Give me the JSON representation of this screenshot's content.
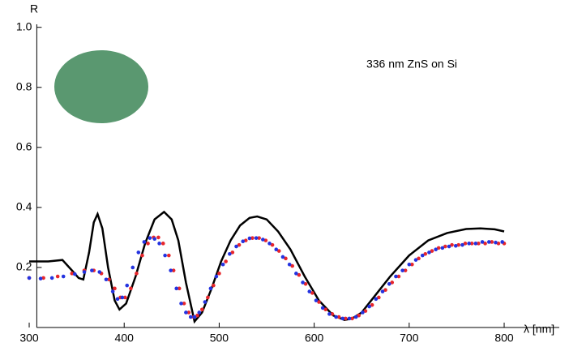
{
  "chart_data": {
    "type": "scatter",
    "y_label": "R",
    "x_label": "λ [nm]",
    "annotation": "336 nm  ZnS  on Si",
    "xlim": [
      308,
      858
    ],
    "ylim": [
      0,
      1.01
    ],
    "xticks": [
      300,
      400,
      500,
      600,
      700,
      800
    ],
    "yticks": [
      0.2,
      0.4,
      0.6,
      0.8,
      {
        "value": 1,
        "label": "1.0"
      }
    ],
    "series": [
      {
        "mode": "line",
        "color": "#000000",
        "x": [
          300,
          320,
          335,
          345,
          352,
          357,
          363,
          368,
          372,
          377,
          383,
          390,
          395,
          402,
          412,
          422,
          432,
          442,
          450,
          457,
          465,
          474,
          482,
          492,
          502,
          512,
          522,
          532,
          540,
          550,
          562,
          575,
          590,
          605,
          620,
          632,
          640,
          650,
          665,
          680,
          700,
          720,
          740,
          760,
          775,
          790,
          800
        ],
        "values": [
          0.22,
          0.22,
          0.225,
          0.19,
          0.165,
          0.16,
          0.25,
          0.35,
          0.378,
          0.33,
          0.2,
          0.09,
          0.06,
          0.08,
          0.17,
          0.28,
          0.36,
          0.385,
          0.36,
          0.29,
          0.15,
          0.02,
          0.05,
          0.13,
          0.22,
          0.29,
          0.34,
          0.365,
          0.37,
          0.36,
          0.32,
          0.26,
          0.17,
          0.09,
          0.04,
          0.025,
          0.03,
          0.05,
          0.11,
          0.17,
          0.24,
          0.29,
          0.315,
          0.328,
          0.33,
          0.327,
          0.32
        ]
      },
      {
        "mode": "points",
        "color": "#e8262b",
        "x": [
          300,
          315,
          330,
          345,
          358,
          368,
          376,
          384,
          390,
          396,
          401,
          407,
          413,
          419,
          425,
          431,
          436,
          441,
          447,
          452,
          458,
          463,
          468,
          473,
          477,
          482,
          488,
          494,
          500,
          507,
          514,
          521,
          528,
          535,
          542,
          549,
          556,
          563,
          570,
          577,
          584,
          591,
          598,
          605,
          612,
          619,
          626,
          633,
          640,
          647,
          654,
          661,
          668,
          675,
          682,
          689,
          696,
          703,
          710,
          717,
          724,
          731,
          738,
          745,
          752,
          759,
          766,
          773,
          780,
          787,
          794,
          800
        ],
        "values": [
          0.165,
          0.165,
          0.17,
          0.18,
          0.19,
          0.19,
          0.18,
          0.16,
          0.13,
          0.1,
          0.1,
          0.13,
          0.18,
          0.24,
          0.28,
          0.3,
          0.3,
          0.28,
          0.24,
          0.19,
          0.13,
          0.08,
          0.05,
          0.035,
          0.04,
          0.06,
          0.1,
          0.14,
          0.18,
          0.22,
          0.25,
          0.275,
          0.29,
          0.298,
          0.298,
          0.29,
          0.275,
          0.255,
          0.23,
          0.205,
          0.175,
          0.145,
          0.115,
          0.085,
          0.06,
          0.045,
          0.035,
          0.03,
          0.03,
          0.04,
          0.055,
          0.075,
          0.1,
          0.125,
          0.15,
          0.17,
          0.19,
          0.21,
          0.23,
          0.245,
          0.255,
          0.265,
          0.27,
          0.275,
          0.275,
          0.28,
          0.28,
          0.28,
          0.28,
          0.285,
          0.28,
          0.28
        ]
      },
      {
        "mode": "points",
        "color": "#2433e0",
        "x": [
          300,
          312,
          324,
          336,
          348,
          358,
          366,
          374,
          381,
          388,
          393,
          398,
          403,
          409,
          415,
          421,
          427,
          432,
          437,
          443,
          449,
          455,
          460,
          465,
          470,
          474,
          479,
          485,
          491,
          497,
          504,
          511,
          518,
          525,
          532,
          539,
          546,
          553,
          560,
          567,
          574,
          581,
          588,
          595,
          602,
          609,
          616,
          623,
          630,
          637,
          644,
          651,
          658,
          665,
          672,
          679,
          686,
          693,
          700,
          707,
          714,
          721,
          728,
          735,
          742,
          749,
          756,
          763,
          770,
          777,
          784,
          791,
          798
        ],
        "values": [
          0.165,
          0.163,
          0.165,
          0.17,
          0.178,
          0.185,
          0.19,
          0.185,
          0.16,
          0.12,
          0.095,
          0.1,
          0.14,
          0.2,
          0.25,
          0.285,
          0.298,
          0.295,
          0.28,
          0.24,
          0.19,
          0.13,
          0.08,
          0.05,
          0.035,
          0.035,
          0.05,
          0.085,
          0.13,
          0.17,
          0.21,
          0.245,
          0.27,
          0.287,
          0.297,
          0.298,
          0.293,
          0.28,
          0.26,
          0.235,
          0.21,
          0.18,
          0.15,
          0.12,
          0.09,
          0.065,
          0.045,
          0.035,
          0.03,
          0.03,
          0.035,
          0.05,
          0.07,
          0.095,
          0.12,
          0.145,
          0.17,
          0.19,
          0.21,
          0.225,
          0.24,
          0.25,
          0.26,
          0.265,
          0.27,
          0.272,
          0.275,
          0.28,
          0.28,
          0.285,
          0.285,
          0.283,
          0.285
        ]
      }
    ]
  }
}
